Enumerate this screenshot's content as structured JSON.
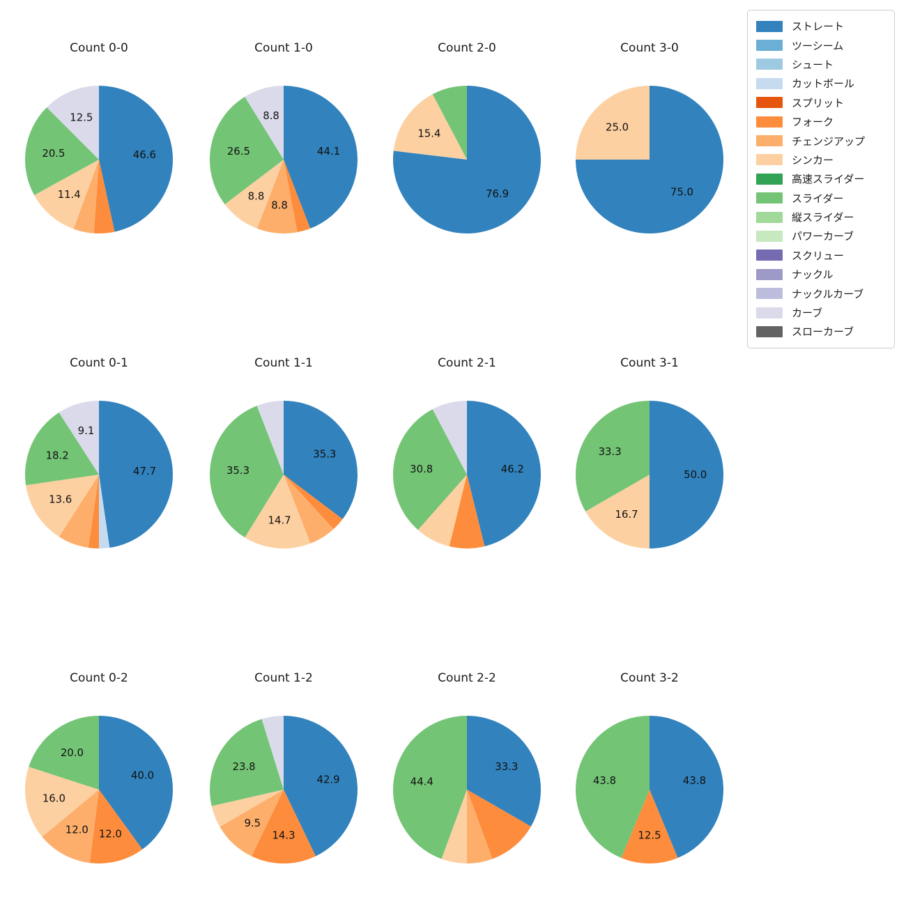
{
  "figure": {
    "background": "#ffffff",
    "text_color": "#1a1a1a"
  },
  "legend": {
    "position": "top-right",
    "items": [
      {
        "label": "ストレート",
        "color": "#3182bd"
      },
      {
        "label": "ツーシーム",
        "color": "#6baed6"
      },
      {
        "label": "シュート",
        "color": "#9ecae1"
      },
      {
        "label": "カットボール",
        "color": "#c6dbef"
      },
      {
        "label": "スプリット",
        "color": "#e6550d"
      },
      {
        "label": "フォーク",
        "color": "#fd8d3c"
      },
      {
        "label": "チェンジアップ",
        "color": "#fdae6b"
      },
      {
        "label": "シンカー",
        "color": "#fdd0a2"
      },
      {
        "label": "高速スライダー",
        "color": "#31a354"
      },
      {
        "label": "スライダー",
        "color": "#74c476"
      },
      {
        "label": "縦スライダー",
        "color": "#a1d99b"
      },
      {
        "label": "パワーカーブ",
        "color": "#c7e9c0"
      },
      {
        "label": "スクリュー",
        "color": "#756bb1"
      },
      {
        "label": "ナックル",
        "color": "#9e9ac8"
      },
      {
        "label": "ナックルカーブ",
        "color": "#bcbddc"
      },
      {
        "label": "カーブ",
        "color": "#dadaeb"
      },
      {
        "label": "スローカーブ",
        "color": "#636363"
      }
    ]
  },
  "chart_data": [
    {
      "type": "pie",
      "title": "Count 0-0",
      "start_angle_deg": 0,
      "clockwise": true,
      "slices": [
        {
          "name": "ストレート",
          "value": 46.6,
          "label": "46.6",
          "labeled": true
        },
        {
          "name": "フォーク",
          "value": 4.5,
          "label": "4.5",
          "labeled": false
        },
        {
          "name": "チェンジアップ",
          "value": 4.5,
          "label": "4.5",
          "labeled": false
        },
        {
          "name": "シンカー",
          "value": 11.4,
          "label": "11.4",
          "labeled": true
        },
        {
          "name": "スライダー",
          "value": 20.5,
          "label": "20.5",
          "labeled": true
        },
        {
          "name": "カーブ",
          "value": 12.5,
          "label": "12.5",
          "labeled": true
        }
      ]
    },
    {
      "type": "pie",
      "title": "Count 1-0",
      "start_angle_deg": 0,
      "clockwise": true,
      "slices": [
        {
          "name": "ストレート",
          "value": 44.1,
          "label": "44.1",
          "labeled": true
        },
        {
          "name": "フォーク",
          "value": 2.9,
          "label": "2.9",
          "labeled": false
        },
        {
          "name": "チェンジアップ",
          "value": 8.8,
          "label": "8.8",
          "labeled": true
        },
        {
          "name": "シンカー",
          "value": 8.8,
          "label": "8.8",
          "labeled": true
        },
        {
          "name": "スライダー",
          "value": 26.5,
          "label": "26.5",
          "labeled": true
        },
        {
          "name": "カーブ",
          "value": 8.8,
          "label": "8.8",
          "labeled": true
        }
      ]
    },
    {
      "type": "pie",
      "title": "Count 2-0",
      "start_angle_deg": 0,
      "clockwise": true,
      "slices": [
        {
          "name": "ストレート",
          "value": 76.9,
          "label": "76.9",
          "labeled": true
        },
        {
          "name": "シンカー",
          "value": 15.4,
          "label": "15.4",
          "labeled": true
        },
        {
          "name": "スライダー",
          "value": 7.7,
          "label": "7.7",
          "labeled": false
        }
      ]
    },
    {
      "type": "pie",
      "title": "Count 3-0",
      "start_angle_deg": 0,
      "clockwise": true,
      "slices": [
        {
          "name": "ストレート",
          "value": 75.0,
          "label": "75.0",
          "labeled": true
        },
        {
          "name": "シンカー",
          "value": 25.0,
          "label": "25.0",
          "labeled": true
        }
      ]
    },
    {
      "type": "pie",
      "title": "Count 0-1",
      "start_angle_deg": 0,
      "clockwise": true,
      "slices": [
        {
          "name": "ストレート",
          "value": 47.7,
          "label": "47.7",
          "labeled": true
        },
        {
          "name": "カットボール",
          "value": 2.3,
          "label": "2.3",
          "labeled": false
        },
        {
          "name": "フォーク",
          "value": 2.3,
          "label": "2.3",
          "labeled": false
        },
        {
          "name": "チェンジアップ",
          "value": 6.8,
          "label": "6.8",
          "labeled": false
        },
        {
          "name": "シンカー",
          "value": 13.6,
          "label": "13.6",
          "labeled": true
        },
        {
          "name": "スライダー",
          "value": 18.2,
          "label": "18.2",
          "labeled": true
        },
        {
          "name": "カーブ",
          "value": 9.1,
          "label": "9.1",
          "labeled": true
        }
      ]
    },
    {
      "type": "pie",
      "title": "Count 1-1",
      "start_angle_deg": 0,
      "clockwise": true,
      "slices": [
        {
          "name": "ストレート",
          "value": 35.3,
          "label": "35.3",
          "labeled": true
        },
        {
          "name": "フォーク",
          "value": 2.9,
          "label": "2.9",
          "labeled": false
        },
        {
          "name": "チェンジアップ",
          "value": 5.9,
          "label": "5.9",
          "labeled": false
        },
        {
          "name": "シンカー",
          "value": 14.7,
          "label": "14.7",
          "labeled": true
        },
        {
          "name": "スライダー",
          "value": 35.3,
          "label": "35.3",
          "labeled": true
        },
        {
          "name": "カーブ",
          "value": 5.9,
          "label": "5.9",
          "labeled": false
        }
      ]
    },
    {
      "type": "pie",
      "title": "Count 2-1",
      "start_angle_deg": 0,
      "clockwise": true,
      "slices": [
        {
          "name": "ストレート",
          "value": 46.2,
          "label": "46.2",
          "labeled": true
        },
        {
          "name": "フォーク",
          "value": 7.7,
          "label": "7.7",
          "labeled": false
        },
        {
          "name": "シンカー",
          "value": 7.7,
          "label": "7.7",
          "labeled": false
        },
        {
          "name": "スライダー",
          "value": 30.8,
          "label": "30.8",
          "labeled": true
        },
        {
          "name": "カーブ",
          "value": 7.7,
          "label": "7.7",
          "labeled": false
        }
      ]
    },
    {
      "type": "pie",
      "title": "Count 3-1",
      "start_angle_deg": 0,
      "clockwise": true,
      "slices": [
        {
          "name": "ストレート",
          "value": 50.0,
          "label": "50.0",
          "labeled": true
        },
        {
          "name": "シンカー",
          "value": 16.7,
          "label": "16.7",
          "labeled": true
        },
        {
          "name": "スライダー",
          "value": 33.3,
          "label": "33.3",
          "labeled": true
        }
      ]
    },
    {
      "type": "pie",
      "title": "Count 0-2",
      "start_angle_deg": 0,
      "clockwise": true,
      "slices": [
        {
          "name": "ストレート",
          "value": 40.0,
          "label": "40.0",
          "labeled": true
        },
        {
          "name": "フォーク",
          "value": 12.0,
          "label": "12.0",
          "labeled": true
        },
        {
          "name": "チェンジアップ",
          "value": 12.0,
          "label": "12.0",
          "labeled": true
        },
        {
          "name": "シンカー",
          "value": 16.0,
          "label": "16.0",
          "labeled": true
        },
        {
          "name": "スライダー",
          "value": 20.0,
          "label": "20.0",
          "labeled": true
        }
      ]
    },
    {
      "type": "pie",
      "title": "Count 1-2",
      "start_angle_deg": 0,
      "clockwise": true,
      "slices": [
        {
          "name": "ストレート",
          "value": 42.9,
          "label": "42.9",
          "labeled": true
        },
        {
          "name": "フォーク",
          "value": 14.3,
          "label": "14.3",
          "labeled": true
        },
        {
          "name": "チェンジアップ",
          "value": 9.5,
          "label": "9.5",
          "labeled": true
        },
        {
          "name": "シンカー",
          "value": 4.8,
          "label": "4.8",
          "labeled": false
        },
        {
          "name": "スライダー",
          "value": 23.8,
          "label": "23.8",
          "labeled": true
        },
        {
          "name": "カーブ",
          "value": 4.8,
          "label": "4.8",
          "labeled": false
        }
      ]
    },
    {
      "type": "pie",
      "title": "Count 2-2",
      "start_angle_deg": 0,
      "clockwise": true,
      "slices": [
        {
          "name": "ストレート",
          "value": 33.3,
          "label": "33.3",
          "labeled": true
        },
        {
          "name": "フォーク",
          "value": 11.1,
          "label": "11.1",
          "labeled": false
        },
        {
          "name": "チェンジアップ",
          "value": 5.6,
          "label": "5.6",
          "labeled": false
        },
        {
          "name": "シンカー",
          "value": 5.6,
          "label": "5.6",
          "labeled": false
        },
        {
          "name": "スライダー",
          "value": 44.4,
          "label": "44.4",
          "labeled": true
        }
      ]
    },
    {
      "type": "pie",
      "title": "Count 3-2",
      "start_angle_deg": 0,
      "clockwise": true,
      "slices": [
        {
          "name": "ストレート",
          "value": 43.8,
          "label": "43.8",
          "labeled": true
        },
        {
          "name": "フォーク",
          "value": 12.5,
          "label": "12.5",
          "labeled": true
        },
        {
          "name": "スライダー",
          "value": 43.8,
          "label": "43.8",
          "labeled": true
        }
      ]
    }
  ]
}
